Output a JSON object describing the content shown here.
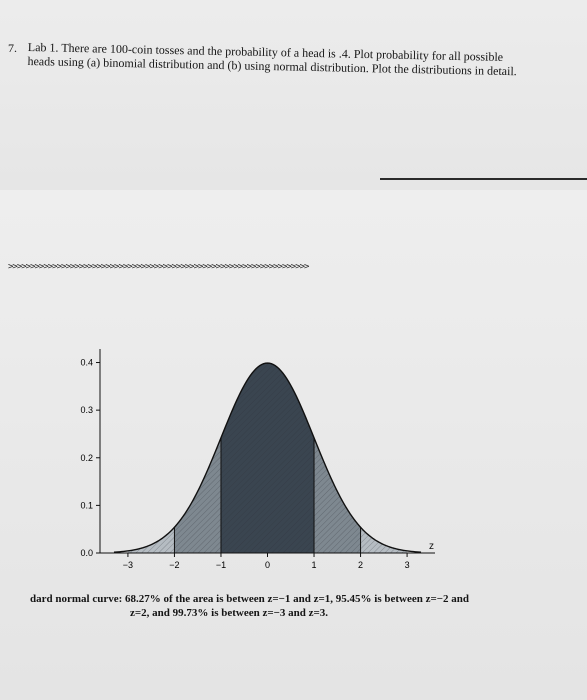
{
  "problem": {
    "number": "7.",
    "text": "Lab 1. There are 100-coin tosses and the probability of a head is .4. Plot probability for all possible heads using (a) binomial distribution and (b) using normal distribution. Plot the distributions in detail."
  },
  "separator": ">>>>>>>>>>>>>>>>>>>>>>>>>>>>>>>>>>>>>>>>>>>>>>>>>>>>>>>>>>>>>>>>>>>>",
  "chart_data": {
    "type": "area",
    "curve": "standard-normal",
    "x_ticks": [
      "-3",
      "-2",
      "-1",
      "0",
      "1",
      "2",
      "3"
    ],
    "y_ticks": [
      "0.0",
      "0.1",
      "0.2",
      "0.3",
      "0.4"
    ],
    "xlim": [
      -3.6,
      3.6
    ],
    "ylim": [
      0,
      0.42
    ],
    "x_axis_letter": "z",
    "shaded_regions": [
      {
        "from": -1,
        "to": 1,
        "share": "68.27%"
      },
      {
        "from": -2,
        "to": 2,
        "share": "95.45%"
      },
      {
        "from": -3,
        "to": 3,
        "share": "99.73%"
      }
    ],
    "colors": {
      "center": "#3a4550",
      "middle": "#7e8890",
      "outer": "#b5bcc2",
      "outline": "#111111"
    }
  },
  "caption": {
    "line1": "dard normal curve: 68.27% of the area is between z=−1 and z=1, 95.45% is between z=−2 and",
    "line2": "z=2, and 99.73% is between z=−3 and z=3."
  }
}
